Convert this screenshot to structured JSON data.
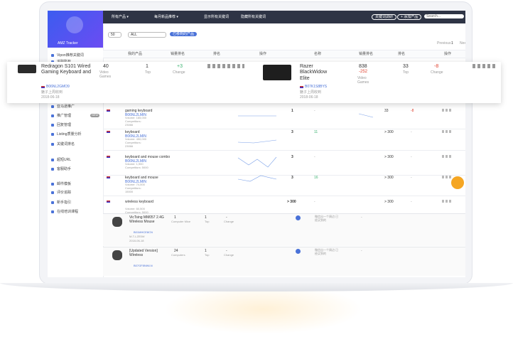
{
  "sidebar": {
    "brand": "AMZ Tracker",
    "menu": [
      "Vipon推荐关键词",
      "追踪所有",
      "亚马逊推广",
      "推广管理",
      "回复管理",
      "Listing质量分析",
      "关键词排名",
      "超短URL",
      "客服助手",
      "邮件模板",
      "评价追踪",
      "新手指引",
      "在线培训课程"
    ],
    "badge": "NEW"
  },
  "nav": {
    "items": [
      "所有产品 ▾",
      "每月新品推荐 ▾",
      "显示所有关键词",
      "隐藏所有关键词"
    ],
    "buttons": [
      "关键词调研",
      "+ 添加产品"
    ],
    "search": "Search..."
  },
  "filters": {
    "per_page": "50",
    "status": "ALL",
    "button": "已移到的产品",
    "prev": "Previous",
    "page": "1",
    "next": "Next"
  },
  "table_header": [
    "我的产品",
    "销量排名",
    "排名",
    "操作",
    "名称",
    "销量排名",
    "排名",
    "操作"
  ],
  "popup": {
    "left": {
      "title": "Redragon S101 Wired Gaming Keyboard and",
      "asin": "B06NL2GMO9",
      "note": "魅子上周收到",
      "date": "2018-06-18",
      "rank": "40",
      "rank_cat": "Video Games",
      "top": "1",
      "top_label": "Top",
      "change": "+3",
      "change_label": "Change"
    },
    "right": {
      "title": "Razer BlackWidow Elite",
      "asin": "B07K1S8BYS",
      "note": "魅子上周收到",
      "date": "2018-06-18",
      "rank": "838",
      "rank_delta": "-252",
      "rank_cat": "Video Games",
      "top": "33",
      "top_label": "Top",
      "change": "-8",
      "change_label": "Change"
    }
  },
  "keywords": [
    {
      "name": "gaming keyboard",
      "asin": "B06NL2LMIN",
      "volume": "Volume: 165,000",
      "competitors": "Competitors:",
      "count": "23066",
      "rank": "1",
      "change": "-",
      "rank2": "33",
      "change2": "-8"
    },
    {
      "name": "keyboard",
      "asin": "B06NL2LMIN",
      "volume": "Volume: 450,000",
      "competitors": "Competitors:",
      "count": "23066",
      "rank": "3",
      "change": "11",
      "rank2": "> 300",
      "change2": "-"
    },
    {
      "name": "keyboard and mouse combo",
      "asin": "B06NL2LMIN",
      "volume": "Volume: 1,900",
      "competitors": "Competitors: 5000",
      "count": "",
      "rank": "3",
      "change": "-",
      "rank2": "> 300",
      "change2": "-"
    },
    {
      "name": "keyboard and mouse",
      "asin": "B06NL2LMIN",
      "volume": "Volume: 74,000",
      "competitors": "Competitors:",
      "count": "15000",
      "rank": "3",
      "change": "16",
      "rank2": "> 300",
      "change2": "-"
    },
    {
      "name": "wireless keyboard",
      "asin": "",
      "volume": "Volume: 60,500",
      "competitors": "Competitors: 5000",
      "count": "",
      "rank": "> 300",
      "change": "-",
      "rank2": "> 300",
      "change2": "-"
    }
  ],
  "products": [
    {
      "title": "VicTsing MM057 2.4G Wireless Mouse",
      "asin": "B01MHCE8CN",
      "sub": "M-T-LZE5W",
      "date": "2018-06-18",
      "rank": "1",
      "rank_cat": "Computer Mice",
      "top": "1",
      "top_label": "Top",
      "change": "-",
      "change_label": "Change",
      "note": "微信出一个周边 已经买到的",
      "other": "-"
    },
    {
      "title": "[Updated Version] Wireless",
      "asin": "B07GF8NWLN",
      "sub": "",
      "date": "",
      "rank": "24",
      "rank_cat": "Computers",
      "top": "1",
      "top_label": "Top",
      "change": "-",
      "change_label": "Change",
      "note": "微信出一个周边 已经买到的",
      "other": "-"
    }
  ]
}
